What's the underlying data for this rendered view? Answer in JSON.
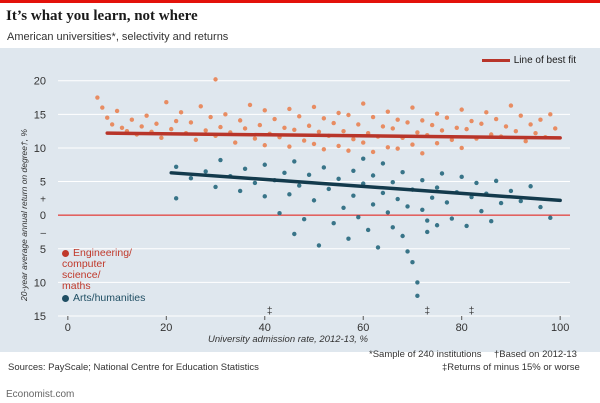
{
  "header": {
    "title": "It’s what you learn, not where",
    "subtitle": "American universities*, selectivity and returns"
  },
  "legend": {
    "best_fit": "Line of best fit",
    "engineering": "Engineering/ computer science/ maths",
    "arts": "Arts/humanities"
  },
  "footer": {
    "sources": "Sources: PayScale; National Centre for Education Statistics",
    "note1": "*Sample of 240 institutions",
    "note2": "†Based on 2012-13",
    "note3": "‡Returns of minus 15% or worse",
    "brand": "Economist.com"
  },
  "colors": {
    "engineering": "#e8875a",
    "arts": "#2e6e82",
    "eng_line": "#b8352a",
    "arts_line": "#133a4c",
    "zero_line": "#e3120b",
    "panel": "#dfe7ee"
  },
  "chart_data": {
    "type": "scatter",
    "title": "It’s what you learn, not where",
    "subtitle": "American universities*, selectivity and returns",
    "xlabel": "University admission rate, 2012-13, %",
    "ylabel": "20-year average annual return on degree†, %",
    "xlim": [
      -2,
      102
    ],
    "ylim": [
      -15,
      21
    ],
    "x_ticks": [
      0,
      20,
      40,
      60,
      80,
      100
    ],
    "y_ticks": [
      20,
      15,
      10,
      5,
      0,
      -5,
      -10,
      -15
    ],
    "y_tick_labels": [
      "20",
      "15",
      "10",
      "5",
      "0",
      "5",
      "10",
      "15"
    ],
    "y_tick_signs": [
      {
        "y": 2.5,
        "label": "+"
      },
      {
        "y": -2.5,
        "label": "–"
      }
    ],
    "grid": true,
    "legend_position": "top-right",
    "flags": [
      {
        "x": 41,
        "label": "‡"
      },
      {
        "x": 73,
        "label": "‡"
      },
      {
        "x": 82,
        "label": "‡"
      }
    ],
    "best_fit": [
      {
        "name": "Engineering/computer science/maths",
        "x": [
          8,
          100
        ],
        "y": [
          12.2,
          11.5
        ]
      },
      {
        "name": "Arts/humanities",
        "x": [
          21,
          100
        ],
        "y": [
          6.3,
          2.2
        ]
      }
    ],
    "series": [
      {
        "name": "Engineering/computer science/maths",
        "points": [
          [
            6,
            17.5
          ],
          [
            7,
            16
          ],
          [
            8,
            14.5
          ],
          [
            9,
            13.5
          ],
          [
            10,
            15.5
          ],
          [
            11,
            13
          ],
          [
            12,
            12.5
          ],
          [
            13,
            14.2
          ],
          [
            14,
            12
          ],
          [
            15,
            13.2
          ],
          [
            16,
            14.8
          ],
          [
            17,
            12.4
          ],
          [
            18,
            13.6
          ],
          [
            19,
            11.5
          ],
          [
            20,
            16.8
          ],
          [
            21,
            12.8
          ],
          [
            22,
            14
          ],
          [
            23,
            15.3
          ],
          [
            24,
            12.2
          ],
          [
            25,
            13.8
          ],
          [
            26,
            11.2
          ],
          [
            27,
            16.2
          ],
          [
            28,
            12.6
          ],
          [
            29,
            14.6
          ],
          [
            30,
            20.2
          ],
          [
            30,
            11.8
          ],
          [
            31,
            13.1
          ],
          [
            32,
            15
          ],
          [
            33,
            12.3
          ],
          [
            34,
            10.8
          ],
          [
            35,
            14.1
          ],
          [
            36,
            12.9
          ],
          [
            37,
            16.4
          ],
          [
            38,
            11.4
          ],
          [
            39,
            13.4
          ],
          [
            40,
            15.6
          ],
          [
            40,
            10.4
          ],
          [
            41,
            12.1
          ],
          [
            42,
            14.3
          ],
          [
            43,
            11.6
          ],
          [
            44,
            13
          ],
          [
            45,
            15.8
          ],
          [
            45,
            10.2
          ],
          [
            46,
            12.7
          ],
          [
            47,
            14.7
          ],
          [
            48,
            11.1
          ],
          [
            49,
            13.3
          ],
          [
            50,
            16.1
          ],
          [
            50,
            10.6
          ],
          [
            51,
            12.4
          ],
          [
            52,
            14.4
          ],
          [
            52,
            9.8
          ],
          [
            53,
            11.8
          ],
          [
            54,
            13.7
          ],
          [
            55,
            15.2
          ],
          [
            55,
            10.3
          ],
          [
            56,
            12.5
          ],
          [
            57,
            14.9
          ],
          [
            57,
            9.6
          ],
          [
            58,
            11.3
          ],
          [
            59,
            13.5
          ],
          [
            60,
            16.6
          ],
          [
            60,
            10.8
          ],
          [
            61,
            12.2
          ],
          [
            62,
            14.6
          ],
          [
            62,
            9.4
          ],
          [
            63,
            11.7
          ],
          [
            64,
            13.2
          ],
          [
            65,
            15.4
          ],
          [
            65,
            10.1
          ],
          [
            66,
            12.9
          ],
          [
            67,
            14.2
          ],
          [
            67,
            9.9
          ],
          [
            68,
            11.5
          ],
          [
            69,
            13.8
          ],
          [
            70,
            16
          ],
          [
            70,
            10.5
          ],
          [
            71,
            12.3
          ],
          [
            72,
            14.1
          ],
          [
            72,
            9.2
          ],
          [
            73,
            11.9
          ],
          [
            74,
            13.4
          ],
          [
            75,
            15.1
          ],
          [
            75,
            10.7
          ],
          [
            76,
            12.6
          ],
          [
            77,
            14.5
          ],
          [
            78,
            11.2
          ],
          [
            79,
            13
          ],
          [
            80,
            15.7
          ],
          [
            80,
            10
          ],
          [
            81,
            12.8
          ],
          [
            82,
            14
          ],
          [
            83,
            11.4
          ],
          [
            84,
            13.6
          ],
          [
            85,
            15.3
          ],
          [
            86,
            12
          ],
          [
            87,
            14.3
          ],
          [
            88,
            11.7
          ],
          [
            89,
            13.2
          ],
          [
            90,
            16.3
          ],
          [
            91,
            12.5
          ],
          [
            92,
            14.8
          ],
          [
            93,
            11
          ],
          [
            94,
            13.5
          ],
          [
            95,
            12.2
          ],
          [
            96,
            14.2
          ],
          [
            97,
            11.6
          ],
          [
            98,
            15
          ],
          [
            99,
            12.9
          ]
        ]
      },
      {
        "name": "Arts/humanities",
        "points": [
          [
            22,
            7.2
          ],
          [
            22,
            2.5
          ],
          [
            25,
            5.5
          ],
          [
            28,
            6.5
          ],
          [
            30,
            4.2
          ],
          [
            31,
            8.2
          ],
          [
            33,
            5.8
          ],
          [
            35,
            3.6
          ],
          [
            36,
            6.9
          ],
          [
            38,
            4.8
          ],
          [
            40,
            7.5
          ],
          [
            40,
            2.8
          ],
          [
            42,
            5.2
          ],
          [
            43,
            0.3
          ],
          [
            44,
            6.3
          ],
          [
            45,
            3.1
          ],
          [
            46,
            8
          ],
          [
            46,
            -2.8
          ],
          [
            47,
            4.4
          ],
          [
            48,
            -0.6
          ],
          [
            49,
            6
          ],
          [
            50,
            2.2
          ],
          [
            51,
            -4.5
          ],
          [
            52,
            7.1
          ],
          [
            53,
            3.9
          ],
          [
            54,
            -1.2
          ],
          [
            55,
            5.4
          ],
          [
            56,
            1.1
          ],
          [
            57,
            -3.5
          ],
          [
            58,
            6.6
          ],
          [
            58,
            2.9
          ],
          [
            59,
            -0.3
          ],
          [
            60,
            4.7
          ],
          [
            60,
            8.4
          ],
          [
            61,
            -2.2
          ],
          [
            62,
            5.9
          ],
          [
            62,
            1.6
          ],
          [
            63,
            -4.8
          ],
          [
            64,
            3.3
          ],
          [
            64,
            7.7
          ],
          [
            65,
            0.4
          ],
          [
            66,
            -1.8
          ],
          [
            66,
            4.9
          ],
          [
            67,
            2.4
          ],
          [
            68,
            -3.1
          ],
          [
            68,
            6.4
          ],
          [
            69,
            -5.4
          ],
          [
            69,
            1.3
          ],
          [
            70,
            -7
          ],
          [
            70,
            3.8
          ],
          [
            71,
            -10
          ],
          [
            71,
            -12
          ],
          [
            72,
            0.8
          ],
          [
            72,
            5.2
          ],
          [
            73,
            -0.8
          ],
          [
            73,
            -2.5
          ],
          [
            74,
            2.6
          ],
          [
            75,
            4.1
          ],
          [
            75,
            -1.5
          ],
          [
            76,
            6.2
          ],
          [
            77,
            1.9
          ],
          [
            78,
            -0.5
          ],
          [
            79,
            3.4
          ],
          [
            80,
            5.7
          ],
          [
            81,
            -1.6
          ],
          [
            82,
            2.7
          ],
          [
            83,
            4.8
          ],
          [
            84,
            0.6
          ],
          [
            85,
            3.2
          ],
          [
            86,
            -0.9
          ],
          [
            87,
            5.1
          ],
          [
            88,
            1.8
          ],
          [
            90,
            3.6
          ],
          [
            92,
            2.1
          ],
          [
            94,
            4.3
          ],
          [
            96,
            1.2
          ],
          [
            98,
            -0.4
          ]
        ]
      }
    ]
  }
}
